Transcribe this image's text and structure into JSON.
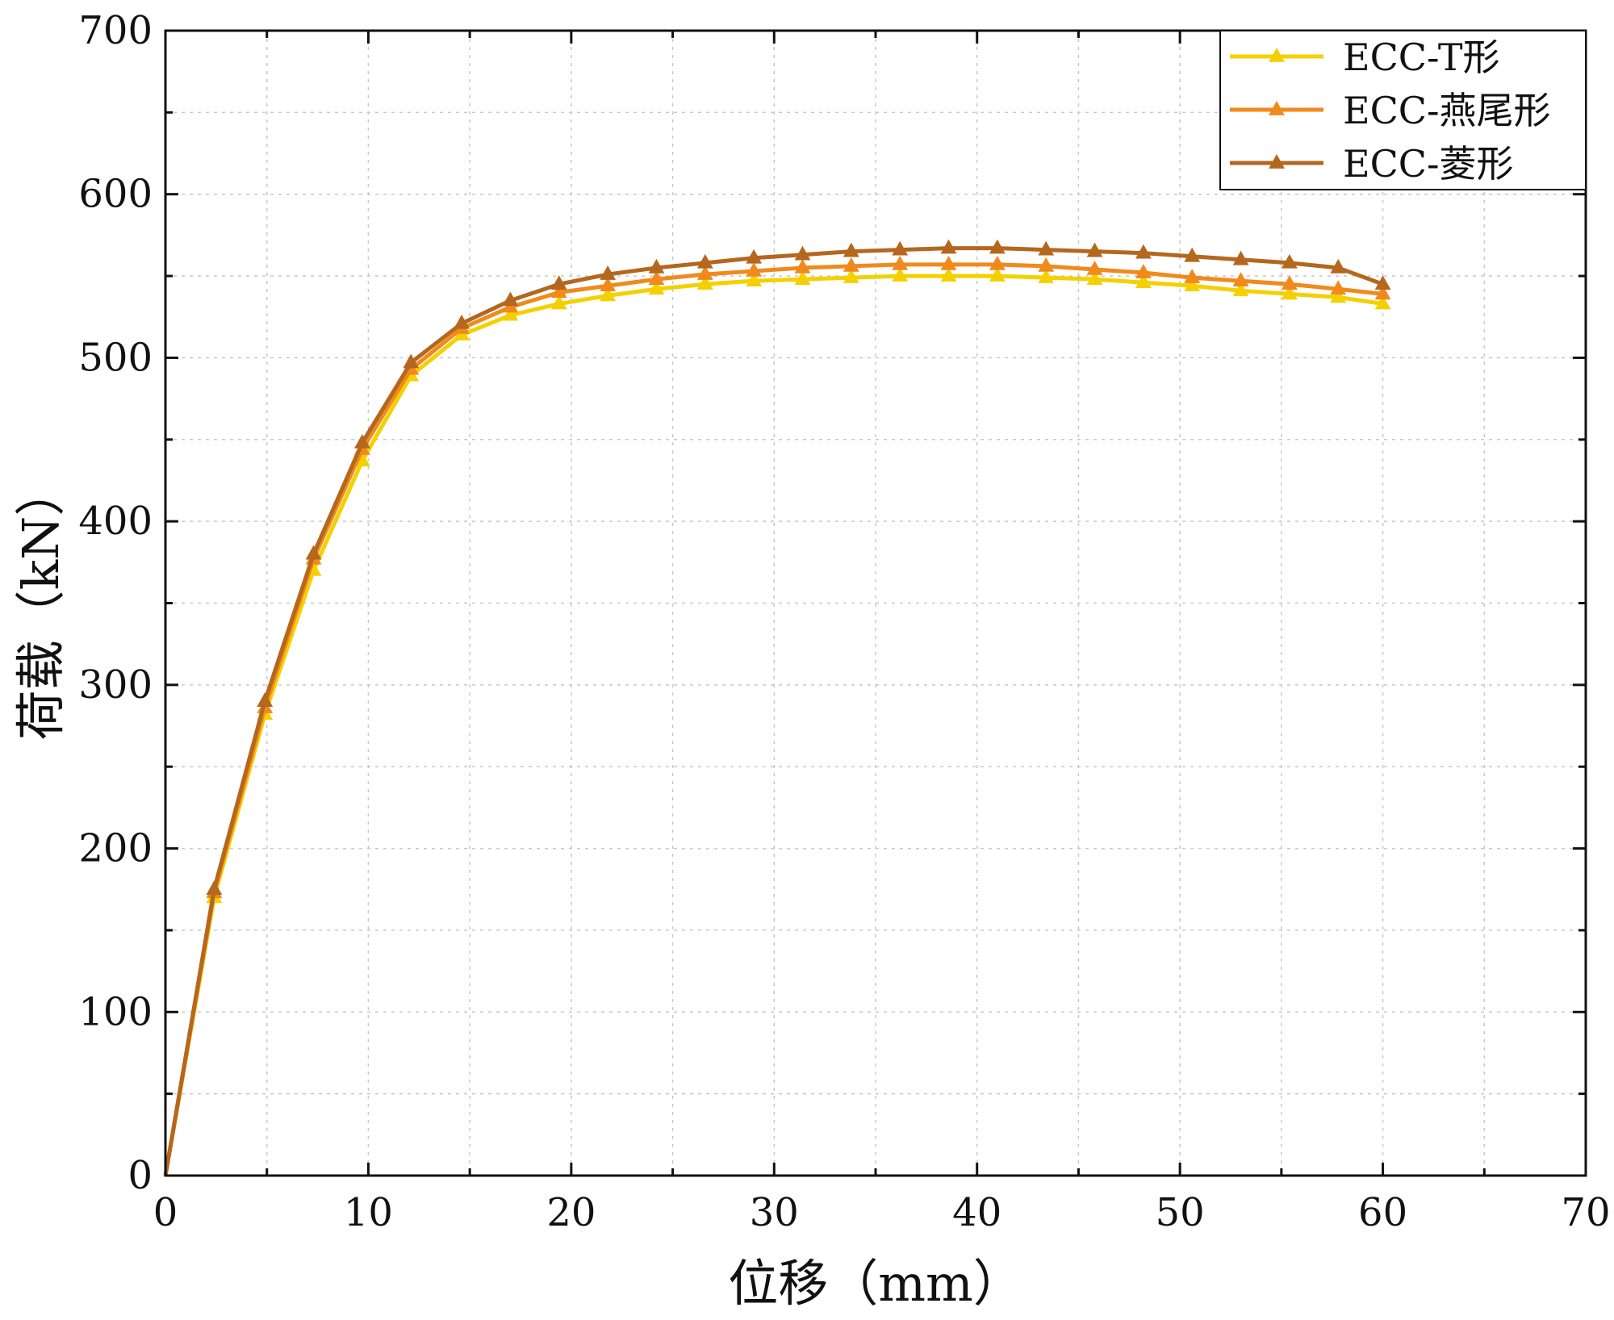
{
  "chart_data": {
    "type": "line",
    "title": "",
    "xlabel": "位移（mm）",
    "ylabel": "荷载（kN）",
    "xlim": [
      0,
      70
    ],
    "ylim": [
      0,
      700
    ],
    "xticks": [
      0,
      10,
      20,
      30,
      40,
      50,
      60,
      70
    ],
    "yticks": [
      0,
      100,
      200,
      300,
      400,
      500,
      600,
      700
    ],
    "grid": true,
    "legend_position": "top-right",
    "x": [
      0,
      2.4,
      4.9,
      7.3,
      9.7,
      12.1,
      14.6,
      17.0,
      19.4,
      21.8,
      24.2,
      26.6,
      29.0,
      31.4,
      33.8,
      36.2,
      38.6,
      41.0,
      43.4,
      45.8,
      48.2,
      50.6,
      53.0,
      55.4,
      57.8,
      60.0
    ],
    "series": [
      {
        "name": "ECC-T形",
        "color": "#f5d000",
        "values": [
          0,
          170,
          282,
          370,
          437,
          489,
          514,
          526,
          533,
          538,
          542,
          545,
          547,
          548,
          549,
          550,
          550,
          550,
          549,
          548,
          546,
          544,
          541,
          539,
          537,
          533
        ]
      },
      {
        "name": "ECC-燕尾形",
        "color": "#f08a1c",
        "values": [
          0,
          173,
          286,
          377,
          444,
          493,
          518,
          531,
          540,
          544,
          548,
          551,
          553,
          555,
          556,
          557,
          557,
          557,
          556,
          554,
          552,
          549,
          547,
          545,
          542,
          539
        ]
      },
      {
        "name": "ECC-菱形",
        "color": "#b5671e",
        "values": [
          0,
          175,
          290,
          380,
          448,
          497,
          521,
          535,
          545,
          551,
          555,
          558,
          561,
          563,
          565,
          566,
          567,
          567,
          566,
          565,
          564,
          562,
          560,
          558,
          555,
          545
        ]
      }
    ]
  }
}
